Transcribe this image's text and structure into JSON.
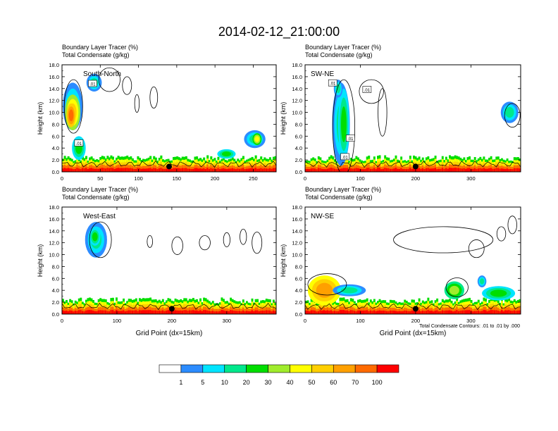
{
  "title": "2014-02-12_21:00:00",
  "colors": {
    "palette": [
      "#ffffff",
      "#2c8cff",
      "#00e4ff",
      "#00e88c",
      "#00de00",
      "#a0ec2c",
      "#ffff00",
      "#ffcf00",
      "#ffa000",
      "#ff6a00",
      "#ff0000"
    ]
  },
  "colorbar": {
    "labels": [
      "1",
      "5",
      "10",
      "20",
      "30",
      "40",
      "50",
      "60",
      "70",
      "100"
    ]
  },
  "footnote": "Total Condensate Contours: .01 to .01 by .000",
  "chart_data": [
    {
      "type": "heatmap",
      "id": "south-north",
      "title_line1": "Boundary Layer Tracer   (%)",
      "title_line2": "Total Condensate   (g/kg)",
      "panel_label": "South-North",
      "xlabel": "",
      "ylabel": "Height (km)",
      "xlim": [
        0,
        280
      ],
      "ylim": [
        0,
        18
      ],
      "xticks": [
        "0",
        "50",
        "100",
        "150",
        "200",
        "250"
      ],
      "xtick_values": [
        0,
        50,
        100,
        150,
        200,
        250
      ],
      "yticks": [
        "0.0",
        "2.0",
        "4.0",
        "6.0",
        "8.0",
        "10.0",
        "12.0",
        "14.0",
        "16.0",
        "18.0"
      ],
      "contour_labels": [
        {
          "text": ".01",
          "x": 40,
          "y": 14.8
        },
        {
          "text": ".01",
          "x": 22,
          "y": 4.8
        }
      ],
      "site_marker_x": 140,
      "tracer_blobs": [
        {
          "x": 14,
          "y": 11,
          "rx": 13,
          "ry": 4,
          "level": 3
        },
        {
          "x": 14,
          "y": 10,
          "rx": 10,
          "ry": 3,
          "level": 7
        },
        {
          "x": 12,
          "y": 9.5,
          "rx": 6,
          "ry": 2,
          "level": 9
        },
        {
          "x": 22,
          "y": 4,
          "rx": 9,
          "ry": 2,
          "level": 4
        },
        {
          "x": 42,
          "y": 15,
          "rx": 10,
          "ry": 1.5,
          "level": 3
        },
        {
          "x": 252,
          "y": 5.5,
          "rx": 14,
          "ry": 1.5,
          "level": 3
        },
        {
          "x": 255,
          "y": 5.5,
          "rx": 6,
          "ry": 1,
          "level": 6
        },
        {
          "x": 215,
          "y": 3,
          "rx": 12,
          "ry": 0.8,
          "level": 4
        }
      ],
      "cloud_contours": [
        {
          "x": 62,
          "y": 15.5,
          "rx": 14,
          "ry": 2
        },
        {
          "x": 85,
          "y": 14.5,
          "rx": 6,
          "ry": 1.5
        },
        {
          "x": 98,
          "y": 11.5,
          "rx": 3,
          "ry": 1.5
        },
        {
          "x": 120,
          "y": 12.5,
          "rx": 5,
          "ry": 1.8
        },
        {
          "x": 15,
          "y": 11,
          "rx": 12,
          "ry": 4.5
        }
      ]
    },
    {
      "type": "heatmap",
      "id": "sw-ne",
      "title_line1": "Boundary Layer Tracer   (%)",
      "title_line2": "Total Condensate   (g/kg)",
      "panel_label": "SW-NE",
      "xlabel": "",
      "ylabel": "Height (km)",
      "xlim": [
        0,
        390
      ],
      "ylim": [
        0,
        18
      ],
      "xticks": [
        "0",
        "100",
        "200",
        "300"
      ],
      "xtick_values": [
        0,
        100,
        200,
        300
      ],
      "yticks": [
        "0.0",
        "2.0",
        "4.0",
        "6.0",
        "8.0",
        "10.0",
        "12.0",
        "14.0",
        "16.0",
        "18.0"
      ],
      "contour_labels": [
        {
          "text": ".01",
          "x": 50,
          "y": 14.9
        },
        {
          "text": ".01",
          "x": 112,
          "y": 13.8
        },
        {
          "text": ".01",
          "x": 82,
          "y": 5.6
        },
        {
          "text": ".01",
          "x": 72,
          "y": 2.5
        }
      ],
      "site_marker_x": 200,
      "tracer_blobs": [
        {
          "x": 65,
          "y": 8,
          "rx": 16,
          "ry": 7,
          "level": 3
        },
        {
          "x": 70,
          "y": 8,
          "rx": 10,
          "ry": 6,
          "level": 4
        },
        {
          "x": 60,
          "y": 14,
          "rx": 8,
          "ry": 1.5,
          "level": 3
        },
        {
          "x": 370,
          "y": 10,
          "rx": 16,
          "ry": 1.8,
          "level": 3
        }
      ],
      "cloud_contours": [
        {
          "x": 120,
          "y": 13.5,
          "rx": 22,
          "ry": 2
        },
        {
          "x": 140,
          "y": 10,
          "rx": 8,
          "ry": 4
        },
        {
          "x": 375,
          "y": 9.5,
          "rx": 14,
          "ry": 2
        },
        {
          "x": 70,
          "y": 7.5,
          "rx": 20,
          "ry": 8
        }
      ]
    },
    {
      "type": "heatmap",
      "id": "west-east",
      "title_line1": "Boundary Layer Tracer   (%)",
      "title_line2": "Total Condensate   (g/kg)",
      "panel_label": "West-East",
      "xlabel": "Grid Point (dx=15km)",
      "ylabel": "Height (km)",
      "xlim": [
        0,
        390
      ],
      "ylim": [
        0,
        18
      ],
      "xticks": [
        "0",
        "100",
        "200",
        "300"
      ],
      "xtick_values": [
        0,
        100,
        200,
        300
      ],
      "yticks": [
        "0.0",
        "2.0",
        "4.0",
        "6.0",
        "8.0",
        "10.0",
        "12.0",
        "14.0",
        "16.0",
        "18.0"
      ],
      "contour_labels": [],
      "site_marker_x": 200,
      "tracer_blobs": [
        {
          "x": 62,
          "y": 12.5,
          "rx": 20,
          "ry": 3,
          "level": 3
        },
        {
          "x": 60,
          "y": 13,
          "rx": 10,
          "ry": 1.5,
          "level": 4
        }
      ],
      "cloud_contours": [
        {
          "x": 70,
          "y": 12.5,
          "rx": 20,
          "ry": 3
        },
        {
          "x": 160,
          "y": 12.2,
          "rx": 5,
          "ry": 1
        },
        {
          "x": 210,
          "y": 11.5,
          "rx": 10,
          "ry": 1.5
        },
        {
          "x": 260,
          "y": 12,
          "rx": 10,
          "ry": 1.2
        },
        {
          "x": 300,
          "y": 12.5,
          "rx": 6,
          "ry": 1.2
        },
        {
          "x": 330,
          "y": 13,
          "rx": 6,
          "ry": 1.3
        },
        {
          "x": 355,
          "y": 12,
          "rx": 9,
          "ry": 1.8
        }
      ]
    },
    {
      "type": "heatmap",
      "id": "nw-se",
      "title_line1": "Boundary Layer Tracer   (%)",
      "title_line2": "Total Condensate   (g/kg)",
      "panel_label": "NW-SE",
      "xlabel": "Grid Point (dx=15km)",
      "ylabel": "Height (km)",
      "xlim": [
        0,
        390
      ],
      "ylim": [
        0,
        18
      ],
      "xticks": [
        "0",
        "100",
        "200",
        "300"
      ],
      "xtick_values": [
        0,
        100,
        200,
        300
      ],
      "yticks": [
        "0.0",
        "2.0",
        "4.0",
        "6.0",
        "8.0",
        "10.0",
        "12.0",
        "14.0",
        "16.0",
        "18.0"
      ],
      "contour_labels": [],
      "site_marker_x": 200,
      "tracer_blobs": [
        {
          "x": 35,
          "y": 4,
          "rx": 30,
          "ry": 2.5,
          "level": 8
        },
        {
          "x": 80,
          "y": 4,
          "rx": 30,
          "ry": 1,
          "level": 3
        },
        {
          "x": 270,
          "y": 4,
          "rx": 18,
          "ry": 1.5,
          "level": 5
        },
        {
          "x": 350,
          "y": 3.5,
          "rx": 30,
          "ry": 1.2,
          "level": 4
        },
        {
          "x": 320,
          "y": 5.5,
          "rx": 8,
          "ry": 1,
          "level": 3
        }
      ],
      "cloud_contours": [
        {
          "x": 250,
          "y": 12.5,
          "rx": 90,
          "ry": 2.2
        },
        {
          "x": 310,
          "y": 11,
          "rx": 14,
          "ry": 1.5
        },
        {
          "x": 355,
          "y": 13.5,
          "rx": 8,
          "ry": 1.2
        },
        {
          "x": 375,
          "y": 15,
          "rx": 8,
          "ry": 1.5
        },
        {
          "x": 40,
          "y": 5,
          "rx": 35,
          "ry": 1.8
        },
        {
          "x": 275,
          "y": 4.5,
          "rx": 20,
          "ry": 1.6
        }
      ]
    }
  ]
}
